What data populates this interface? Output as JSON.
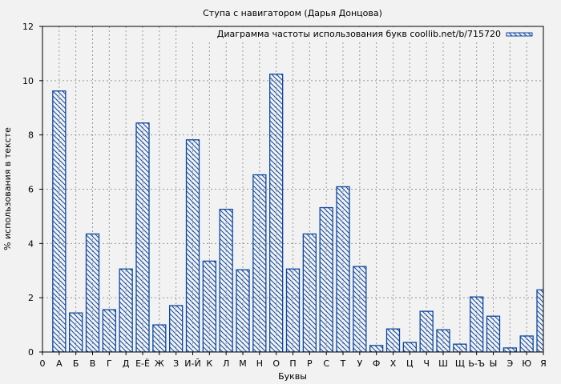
{
  "chart_data": {
    "type": "bar",
    "title": "Ступа с навигатором (Дарья Донцова)",
    "xlabel": "Буквы",
    "ylabel": "% использования в тексте",
    "ylim": [
      0,
      12
    ],
    "yticks": [
      0,
      2,
      4,
      6,
      8,
      10,
      12
    ],
    "grid": true,
    "legend_position": "upper right",
    "x_origin_label": "0",
    "categories": [
      "А",
      "Б",
      "В",
      "Г",
      "Д",
      "Е-Ё",
      "Ж",
      "З",
      "И-Й",
      "К",
      "Л",
      "М",
      "Н",
      "О",
      "П",
      "Р",
      "С",
      "Т",
      "У",
      "Ф",
      "Х",
      "Ц",
      "Ч",
      "Ш",
      "Щ",
      "Ь-Ъ",
      "Ы",
      "Э",
      "Ю",
      "Я"
    ],
    "series": [
      {
        "name": "Диаграмма частоты использования букв coollib.net/b/715720",
        "color": "#0d47a1",
        "hatch": "diagonal",
        "values": [
          9.62,
          1.44,
          4.35,
          1.56,
          3.06,
          8.44,
          1.0,
          1.71,
          7.82,
          3.35,
          5.26,
          3.03,
          6.53,
          10.24,
          3.06,
          4.35,
          5.32,
          6.09,
          3.15,
          0.24,
          0.85,
          0.35,
          1.5,
          0.82,
          0.29,
          2.03,
          1.32,
          0.15,
          0.59,
          2.29
        ]
      }
    ]
  },
  "colors": {
    "background": "#f2f2f2",
    "bar_stroke": "#0d47a1",
    "grid": "#999999",
    "axis": "#000000"
  }
}
